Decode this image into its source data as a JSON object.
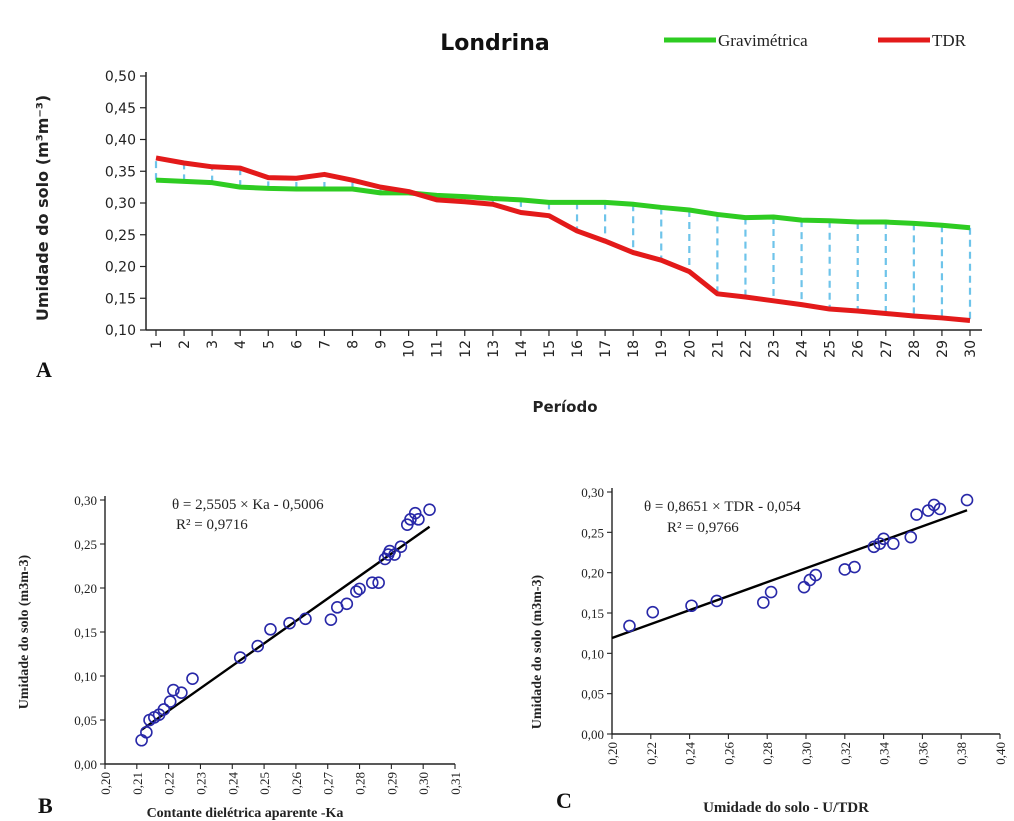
{
  "chart_data": [
    {
      "panel": "A",
      "type": "line",
      "title": "Londrina",
      "xlabel": "Período",
      "ylabel": "Umidade do solo  (m³m⁻³)",
      "ylim": [
        0.1,
        0.5
      ],
      "yticks": [
        "0,10",
        "0,15",
        "0,20",
        "0,25",
        "0,30",
        "0,35",
        "0,40",
        "0,45",
        "0,50"
      ],
      "categories": [
        "1",
        "2",
        "3",
        "4",
        "5",
        "6",
        "7",
        "8",
        "9",
        "10",
        "11",
        "12",
        "13",
        "14",
        "15",
        "16",
        "17",
        "18",
        "19",
        "20",
        "21",
        "22",
        "23",
        "24",
        "25",
        "26",
        "27",
        "28",
        "29",
        "30"
      ],
      "legend_position": "top-right",
      "series": [
        {
          "name": "Gravimétrica",
          "color": "#2ecc22",
          "values": [
            0.336,
            0.334,
            0.332,
            0.325,
            0.323,
            0.322,
            0.322,
            0.322,
            0.316,
            0.316,
            0.312,
            0.31,
            0.307,
            0.305,
            0.301,
            0.301,
            0.301,
            0.298,
            0.293,
            0.289,
            0.282,
            0.277,
            0.278,
            0.273,
            0.272,
            0.27,
            0.27,
            0.268,
            0.265,
            0.261
          ]
        },
        {
          "name": "TDR",
          "color": "#e31a1a",
          "values": [
            0.371,
            0.363,
            0.357,
            0.355,
            0.34,
            0.339,
            0.345,
            0.336,
            0.325,
            0.318,
            0.305,
            0.302,
            0.298,
            0.285,
            0.28,
            0.256,
            0.24,
            0.222,
            0.21,
            0.192,
            0.157,
            0.152,
            0.146,
            0.14,
            0.133,
            0.13,
            0.126,
            0.122,
            0.119,
            0.115
          ]
        }
      ]
    },
    {
      "panel": "B",
      "type": "scatter",
      "xlabel": "Contante dielétrica aparente -Ka",
      "ylabel": "Umidade do solo (m3m-3)",
      "xlim": [
        0.2,
        0.31
      ],
      "ylim": [
        0.0,
        0.3
      ],
      "xticks": [
        "0,20",
        "0,21",
        "0,22",
        "0,23",
        "0,24",
        "0,25",
        "0,26",
        "0,27",
        "0,28",
        "0,29",
        "0,30",
        "0,31"
      ],
      "yticks": [
        "0,00",
        "0,05",
        "0,10",
        "0,15",
        "0,20",
        "0,25",
        "0,30"
      ],
      "equation": "θ = 2,5505 × Ka - 0,5006",
      "r2": "R² = 0,9716",
      "fit": {
        "slope": 2.5505,
        "intercept": -0.5006,
        "x_range": [
          0.2115,
          0.302
        ]
      },
      "points": [
        [
          0.2115,
          0.027
        ],
        [
          0.213,
          0.036
        ],
        [
          0.214,
          0.05
        ],
        [
          0.2155,
          0.053
        ],
        [
          0.217,
          0.056
        ],
        [
          0.2185,
          0.062
        ],
        [
          0.2205,
          0.071
        ],
        [
          0.2215,
          0.084
        ],
        [
          0.224,
          0.081
        ],
        [
          0.2275,
          0.097
        ],
        [
          0.2425,
          0.121
        ],
        [
          0.248,
          0.134
        ],
        [
          0.252,
          0.153
        ],
        [
          0.258,
          0.16
        ],
        [
          0.263,
          0.165
        ],
        [
          0.271,
          0.164
        ],
        [
          0.273,
          0.178
        ],
        [
          0.276,
          0.182
        ],
        [
          0.279,
          0.196
        ],
        [
          0.28,
          0.199
        ],
        [
          0.284,
          0.206
        ],
        [
          0.286,
          0.206
        ],
        [
          0.288,
          0.233
        ],
        [
          0.289,
          0.238
        ],
        [
          0.2895,
          0.242
        ],
        [
          0.291,
          0.238
        ],
        [
          0.293,
          0.247
        ],
        [
          0.295,
          0.272
        ],
        [
          0.296,
          0.278
        ],
        [
          0.2975,
          0.285
        ],
        [
          0.2985,
          0.278
        ],
        [
          0.302,
          0.289
        ]
      ]
    },
    {
      "panel": "C",
      "type": "scatter",
      "xlabel": "Umidade do solo  - U/TDR",
      "ylabel": "Umidade do solo  (m3m-3)",
      "xlim": [
        0.2,
        0.4
      ],
      "ylim": [
        0.0,
        0.3
      ],
      "xticks": [
        "0,20",
        "0,22",
        "0,24",
        "0,26",
        "0,28",
        "0,30",
        "0,32",
        "0,34",
        "0,36",
        "0,38",
        "0,40"
      ],
      "yticks": [
        "0,00",
        "0,05",
        "0,10",
        "0,15",
        "0,20",
        "0,25",
        "0,30"
      ],
      "equation": "θ = 0,8651 × TDR - 0,054",
      "r2": "R² = 0,9766",
      "fit": {
        "slope": 0.8651,
        "intercept": -0.054,
        "x_range": [
          0.2,
          0.383
        ]
      },
      "points": [
        [
          0.209,
          0.134
        ],
        [
          0.221,
          0.151
        ],
        [
          0.241,
          0.159
        ],
        [
          0.254,
          0.165
        ],
        [
          0.278,
          0.163
        ],
        [
          0.282,
          0.176
        ],
        [
          0.299,
          0.182
        ],
        [
          0.302,
          0.191
        ],
        [
          0.305,
          0.197
        ],
        [
          0.32,
          0.204
        ],
        [
          0.325,
          0.207
        ],
        [
          0.335,
          0.232
        ],
        [
          0.338,
          0.236
        ],
        [
          0.34,
          0.242
        ],
        [
          0.345,
          0.236
        ],
        [
          0.354,
          0.244
        ],
        [
          0.357,
          0.272
        ],
        [
          0.363,
          0.277
        ],
        [
          0.366,
          0.284
        ],
        [
          0.369,
          0.279
        ],
        [
          0.383,
          0.29
        ]
      ]
    }
  ],
  "panel_labels": {
    "a": "A",
    "b": "B",
    "c": "C"
  },
  "colors": {
    "connector": "#6ec4ea",
    "marker": "#2828a8",
    "fit_line": "#000000"
  }
}
